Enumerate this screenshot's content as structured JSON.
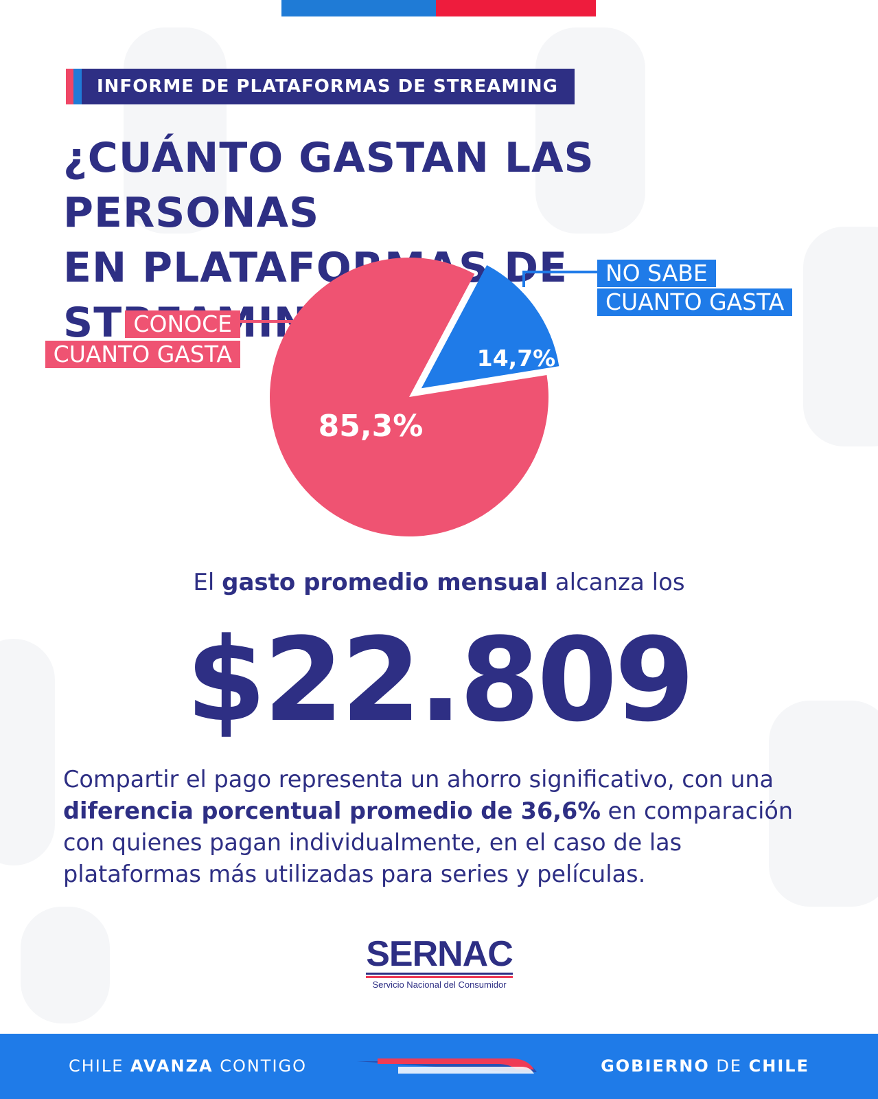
{
  "kicker": "INFORME DE PLATAFORMAS DE STREAMING",
  "title_line1": "¿CUÁNTO GASTAN LAS PERSONAS",
  "title_line2": "EN PLATAFORMAS DE STREAMING?",
  "chart_data": {
    "type": "pie",
    "slices": [
      {
        "name": "CONOCE CUANTO GASTA",
        "label_line1": "CONOCE",
        "label_line2": "CUANTO GASTA",
        "value": 85.3,
        "value_label": "85,3%",
        "color": "#ef5372"
      },
      {
        "name": "NO SABE CUANTO GASTA",
        "label_line1": "NO SABE",
        "label_line2": "CUANTO GASTA",
        "value": 14.7,
        "value_label": "14,7%",
        "color": "#1f7be8",
        "exploded": true
      }
    ],
    "legend": "callout labels"
  },
  "lead": {
    "pre": "El ",
    "bold": "gasto promedio mensual",
    "post": " alcanza los"
  },
  "amount": "$22.809",
  "paragraph": {
    "p1": "Compartir el pago representa un ahorro significativo, con una ",
    "bold": "diferencia  porcentual promedio de 36,6%",
    "p2": " en comparación con quienes pagan individualmente, en el caso de las plataformas más utilizadas para series y películas."
  },
  "logo": {
    "name": "SERNAC",
    "subtitle": "Servicio Nacional del Consumidor"
  },
  "footer": {
    "left_a": "CHILE ",
    "left_b": "AVANZA",
    "left_c": " CONTIGO",
    "right_a": "GOBIERNO",
    "right_b": " DE ",
    "right_c": "CHILE"
  },
  "colors": {
    "navy": "#2e2f84",
    "pink": "#ef5372",
    "blue": "#1f7be8",
    "red": "#ee1c3d"
  }
}
